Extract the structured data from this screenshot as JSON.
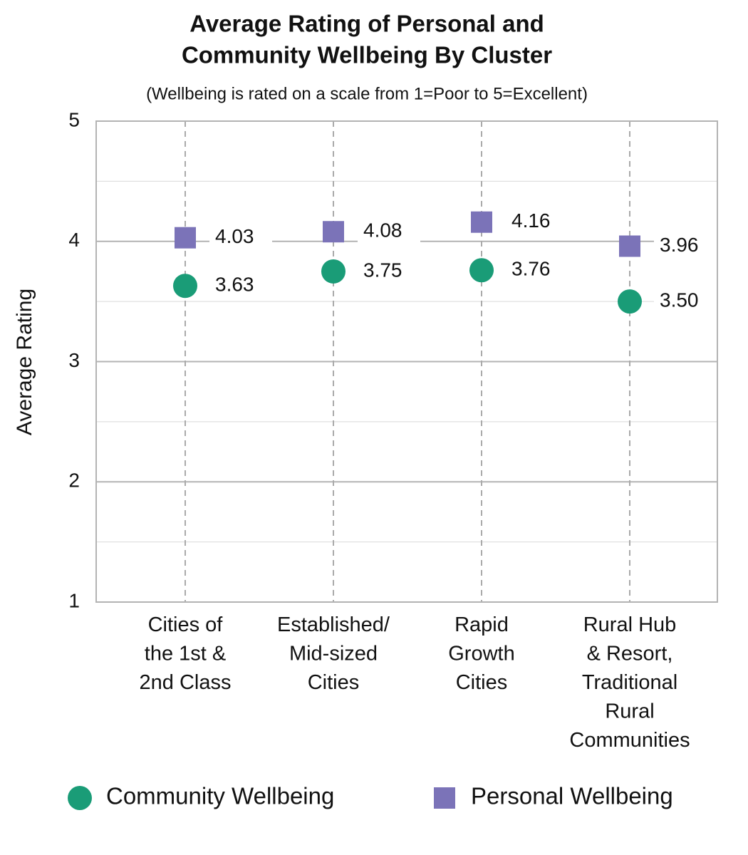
{
  "chart_data": {
    "type": "dot",
    "title": [
      "Average Rating of Personal and",
      "Community Wellbeing By Cluster"
    ],
    "subtitle": "(Wellbeing is rated on a scale from 1=Poor to 5=Excellent)",
    "y_label": "Average Rating",
    "categories": [
      "Cities of\nthe 1st &\n2nd Class",
      "Established/\nMid-sized\nCities",
      "Rapid\nGrowth\nCities",
      "Rural Hub\n& Resort,\nTraditional\nRural\nCommunities"
    ],
    "series": [
      {
        "name": "Community Wellbeing",
        "color": "#1a9c77",
        "marker": "circle",
        "values": [
          3.63,
          3.75,
          3.76,
          3.5
        ],
        "value_labels": [
          "3.63",
          "3.75",
          "3.76",
          "3.50"
        ]
      },
      {
        "name": "Personal Wellbeing",
        "color": "#7b73b8",
        "marker": "square",
        "values": [
          4.03,
          4.08,
          4.16,
          3.96
        ],
        "value_labels": [
          "4.03",
          "4.08",
          "4.16",
          "3.96"
        ]
      }
    ],
    "ylim": [
      1,
      5
    ],
    "yticks": [
      1,
      2,
      3,
      4,
      5
    ],
    "grid": true,
    "legend": "bottom"
  }
}
